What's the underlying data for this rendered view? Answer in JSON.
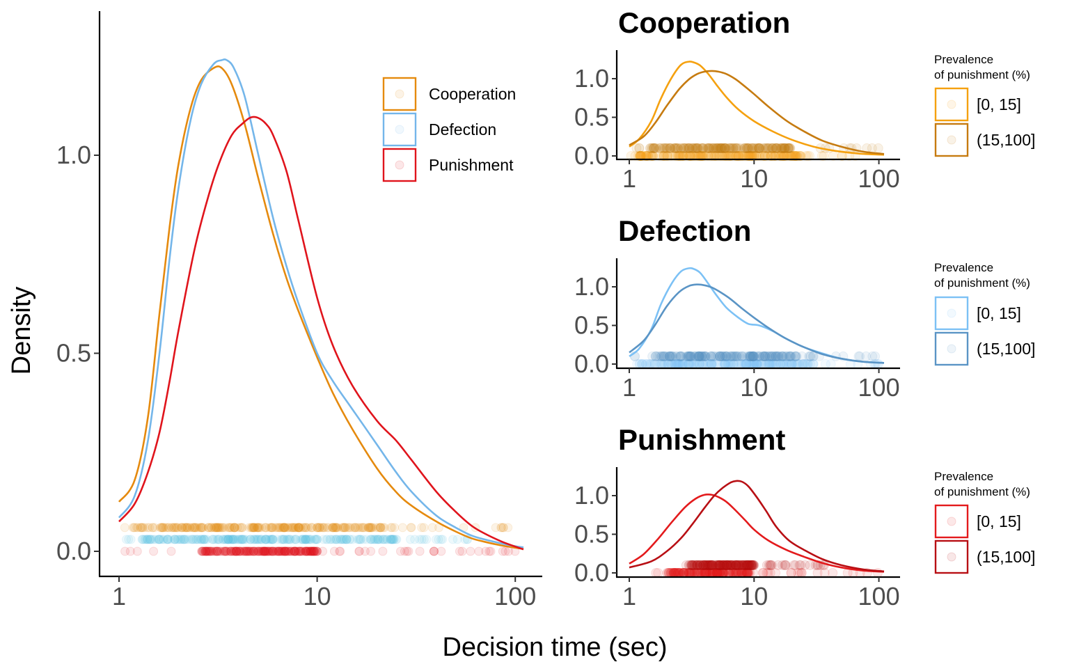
{
  "figure": {
    "xlabel": "Decision time (sec)",
    "ylabel": "Density"
  },
  "chart_data": [
    {
      "type": "line",
      "panel": "main",
      "title": "",
      "x_scale": "log10",
      "xlim": [
        1,
        110
      ],
      "ylim": [
        -0.06,
        1.36
      ],
      "x_ticks": [
        1,
        10,
        100
      ],
      "x_tick_labels": [
        "1",
        "10",
        "100"
      ],
      "y_ticks": [
        0,
        0.5,
        1.0
      ],
      "y_tick_labels": [
        "0.0",
        "0.5",
        "1.0"
      ],
      "grid": false,
      "legend_placement": "top-right",
      "series": [
        {
          "name": "Cooperation",
          "color": "#E58A0E",
          "x": [
            1,
            1.2,
            1.4,
            1.6,
            1.8,
            2.0,
            2.3,
            2.6,
            3.0,
            3.3,
            3.7,
            4.3,
            5.0,
            6.0,
            7.0,
            8.0,
            10,
            12,
            15,
            20,
            25,
            30,
            40,
            50,
            60,
            70,
            85,
            100,
            110
          ],
          "y": [
            0.125,
            0.18,
            0.34,
            0.6,
            0.82,
            0.98,
            1.12,
            1.19,
            1.22,
            1.22,
            1.18,
            1.08,
            0.95,
            0.8,
            0.69,
            0.61,
            0.49,
            0.4,
            0.31,
            0.21,
            0.15,
            0.115,
            0.075,
            0.05,
            0.033,
            0.024,
            0.015,
            0.009,
            0.006
          ]
        },
        {
          "name": "Defection",
          "color": "#74B6EA",
          "x": [
            1,
            1.2,
            1.4,
            1.6,
            1.8,
            2.0,
            2.3,
            2.6,
            3.0,
            3.3,
            3.5,
            3.8,
            4.3,
            5.0,
            6.0,
            7.0,
            8.0,
            10,
            12,
            15,
            20,
            25,
            30,
            40,
            50,
            60,
            70,
            85,
            100,
            110
          ],
          "y": [
            0.085,
            0.14,
            0.28,
            0.5,
            0.74,
            0.92,
            1.09,
            1.18,
            1.23,
            1.24,
            1.24,
            1.22,
            1.15,
            1.01,
            0.84,
            0.72,
            0.63,
            0.5,
            0.43,
            0.36,
            0.27,
            0.2,
            0.15,
            0.09,
            0.06,
            0.04,
            0.03,
            0.02,
            0.013,
            0.01
          ]
        },
        {
          "name": "Punishment",
          "color": "#E0141C",
          "x": [
            1,
            1.2,
            1.4,
            1.6,
            1.8,
            2.0,
            2.4,
            2.8,
            3.2,
            3.7,
            4.2,
            4.6,
            5.0,
            5.5,
            6.0,
            7.0,
            8.0,
            10,
            12,
            15,
            20,
            25,
            30,
            40,
            50,
            60,
            70,
            85,
            100,
            110
          ],
          "y": [
            0.075,
            0.12,
            0.2,
            0.3,
            0.43,
            0.56,
            0.76,
            0.89,
            0.98,
            1.05,
            1.08,
            1.095,
            1.095,
            1.08,
            1.05,
            0.96,
            0.84,
            0.64,
            0.52,
            0.42,
            0.33,
            0.28,
            0.23,
            0.15,
            0.1,
            0.065,
            0.045,
            0.025,
            0.012,
            0.005
          ]
        }
      ],
      "rug": [
        {
          "name": "Cooperation",
          "color": "#E58A0E",
          "y": 0.06,
          "x_range": [
            1,
            100
          ],
          "dense_range": [
            1.2,
            22
          ]
        },
        {
          "name": "Defection",
          "color": "#5BC1E6",
          "y": 0.03,
          "x_range": [
            1,
            60
          ],
          "dense_range": [
            1.3,
            25
          ]
        },
        {
          "name": "Punishment",
          "color": "#E0141C",
          "y": 0.0,
          "x_range": [
            1,
            100
          ],
          "dense_range": [
            2.6,
            10
          ]
        }
      ]
    },
    {
      "type": "line",
      "panel": "cooperation",
      "title": "Cooperation",
      "x_scale": "log10",
      "xlim": [
        1,
        110
      ],
      "ylim": [
        -0.05,
        1.36
      ],
      "x_ticks": [
        1,
        10,
        100
      ],
      "x_tick_labels": [
        "1",
        "10",
        "100"
      ],
      "y_ticks": [
        0,
        0.5,
        1.0
      ],
      "y_tick_labels": [
        "0.0",
        "0.5",
        "1.0"
      ],
      "legend_title": "Prevalence\nof punishment (%)",
      "legend_placement": "right",
      "series": [
        {
          "name": "[0, 15]",
          "color": "#F5A10F",
          "x": [
            1,
            1.2,
            1.5,
            1.8,
            2.2,
            2.6,
            3.0,
            3.3,
            3.7,
            4.3,
            5.0,
            6.0,
            7.5,
            10,
            14,
            20,
            30,
            45,
            70,
            110
          ],
          "y": [
            0.12,
            0.22,
            0.45,
            0.75,
            1.02,
            1.18,
            1.22,
            1.21,
            1.17,
            1.06,
            0.92,
            0.76,
            0.6,
            0.45,
            0.32,
            0.21,
            0.12,
            0.065,
            0.03,
            0.015
          ]
        },
        {
          "name": "(15,100]",
          "color": "#C67B10",
          "x": [
            1,
            1.3,
            1.6,
            2.0,
            2.5,
            3.0,
            3.5,
            4.0,
            4.6,
            5.2,
            6.0,
            7.0,
            8.0,
            10,
            13,
            18,
            25,
            35,
            50,
            75,
            110
          ],
          "y": [
            0.14,
            0.25,
            0.42,
            0.65,
            0.86,
            0.99,
            1.06,
            1.09,
            1.1,
            1.09,
            1.06,
            1.0,
            0.93,
            0.8,
            0.64,
            0.46,
            0.32,
            0.2,
            0.12,
            0.055,
            0.025
          ]
        }
      ],
      "rug": [
        {
          "name": "[0, 15]",
          "color": "#F5A10F",
          "y": 0.0,
          "x_range": [
            1,
            100
          ],
          "dense_range": [
            1.2,
            25
          ]
        },
        {
          "name": "(15,100]",
          "color": "#C67B10",
          "y": 0.1,
          "x_range": [
            1,
            100
          ],
          "dense_range": [
            1.5,
            20
          ]
        }
      ]
    },
    {
      "type": "line",
      "panel": "defection",
      "title": "Defection",
      "x_scale": "log10",
      "xlim": [
        1,
        110
      ],
      "ylim": [
        -0.05,
        1.36
      ],
      "x_ticks": [
        1,
        10,
        100
      ],
      "x_tick_labels": [
        "1",
        "10",
        "100"
      ],
      "y_ticks": [
        0,
        0.5,
        1.0
      ],
      "y_tick_labels": [
        "0.0",
        "0.5",
        "1.0"
      ],
      "legend_title": "Prevalence\nof punishment (%)",
      "legend_placement": "right",
      "series": [
        {
          "name": "[0, 15]",
          "color": "#7CC1F5",
          "x": [
            1,
            1.2,
            1.5,
            1.8,
            2.2,
            2.6,
            3.0,
            3.3,
            3.7,
            4.3,
            5.0,
            6.0,
            7.5,
            9.0,
            11,
            14,
            18,
            25,
            35,
            50,
            75,
            110
          ],
          "y": [
            0.1,
            0.2,
            0.45,
            0.78,
            1.05,
            1.2,
            1.24,
            1.23,
            1.18,
            1.04,
            0.89,
            0.73,
            0.6,
            0.52,
            0.5,
            0.43,
            0.33,
            0.22,
            0.14,
            0.07,
            0.03,
            0.015
          ]
        },
        {
          "name": "(15,100]",
          "color": "#5A94C5",
          "x": [
            1,
            1.3,
            1.6,
            2.0,
            2.5,
            3.0,
            3.5,
            4.0,
            4.6,
            5.5,
            6.5,
            8.0,
            10,
            13,
            18,
            25,
            35,
            50,
            75,
            110
          ],
          "y": [
            0.15,
            0.3,
            0.5,
            0.75,
            0.93,
            1.01,
            1.03,
            1.02,
            0.99,
            0.92,
            0.84,
            0.72,
            0.6,
            0.47,
            0.33,
            0.22,
            0.13,
            0.07,
            0.03,
            0.015
          ]
        }
      ],
      "rug": [
        {
          "name": "[0, 15]",
          "color": "#7CC1F5",
          "y": 0.0,
          "x_range": [
            1,
            100
          ],
          "dense_range": [
            1.2,
            30
          ]
        },
        {
          "name": "(15,100]",
          "color": "#5A94C5",
          "y": 0.1,
          "x_range": [
            1,
            100
          ],
          "dense_range": [
            1.5,
            22
          ]
        }
      ]
    },
    {
      "type": "line",
      "panel": "punishment",
      "title": "Punishment",
      "x_scale": "log10",
      "xlim": [
        1,
        110
      ],
      "ylim": [
        -0.05,
        1.36
      ],
      "x_ticks": [
        1,
        10,
        100
      ],
      "x_tick_labels": [
        "1",
        "10",
        "100"
      ],
      "y_ticks": [
        0,
        0.5,
        1.0
      ],
      "y_tick_labels": [
        "0.0",
        "0.5",
        "1.0"
      ],
      "legend_title": "Prevalence\nof punishment (%)",
      "legend_placement": "right",
      "series": [
        {
          "name": "[0, 15]",
          "color": "#E31A1C",
          "x": [
            1,
            1.3,
            1.7,
            2.2,
            2.8,
            3.4,
            4.0,
            4.6,
            5.2,
            6.0,
            7.0,
            8.5,
            10,
            13,
            18,
            25,
            35,
            50,
            75,
            110
          ],
          "y": [
            0.12,
            0.24,
            0.44,
            0.66,
            0.85,
            0.96,
            1.01,
            1.01,
            0.98,
            0.92,
            0.82,
            0.68,
            0.56,
            0.42,
            0.3,
            0.21,
            0.13,
            0.07,
            0.03,
            0.015
          ]
        },
        {
          "name": "(15,100]",
          "color": "#B80F14",
          "x": [
            1,
            1.5,
            2.0,
            2.6,
            3.2,
            4.0,
            4.8,
            5.6,
            6.5,
            7.2,
            8.0,
            9.0,
            10.5,
            12.5,
            15,
            19,
            25,
            35,
            50,
            75,
            110
          ],
          "y": [
            0.07,
            0.15,
            0.28,
            0.45,
            0.63,
            0.84,
            1.0,
            1.1,
            1.17,
            1.19,
            1.18,
            1.12,
            0.98,
            0.8,
            0.6,
            0.42,
            0.3,
            0.18,
            0.1,
            0.045,
            0.02
          ]
        }
      ],
      "rug": [
        {
          "name": "[0, 15]",
          "color": "#E31A1C",
          "y": 0.0,
          "x_range": [
            1.5,
            100
          ],
          "dense_range": [
            2.0,
            9
          ]
        },
        {
          "name": "(15,100]",
          "color": "#B80F14",
          "y": 0.1,
          "x_range": [
            2.0,
            40
          ],
          "dense_range": [
            3.0,
            10
          ]
        }
      ]
    }
  ]
}
